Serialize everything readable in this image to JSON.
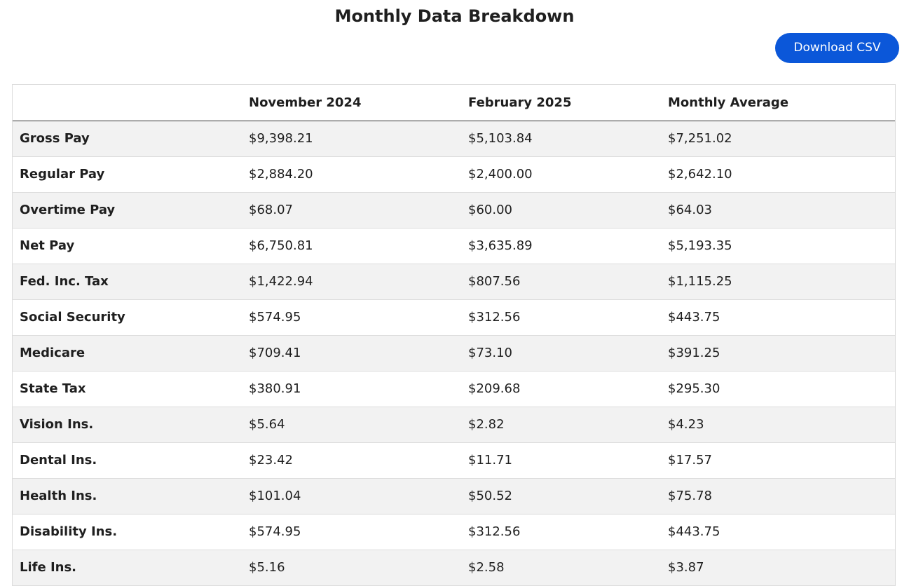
{
  "page": {
    "title": "Monthly Data Breakdown",
    "download_label": "Download CSV",
    "accent_color": "#0b57d9"
  },
  "table": {
    "headers": [
      "",
      "November 2024",
      "February 2025",
      "Monthly Average"
    ],
    "rows": [
      {
        "label": "Gross Pay",
        "nov_2024": "$9,398.21",
        "feb_2025": "$5,103.84",
        "avg": "$7,251.02"
      },
      {
        "label": "Regular Pay",
        "nov_2024": "$2,884.20",
        "feb_2025": "$2,400.00",
        "avg": "$2,642.10"
      },
      {
        "label": "Overtime Pay",
        "nov_2024": "$68.07",
        "feb_2025": "$60.00",
        "avg": "$64.03"
      },
      {
        "label": "Net Pay",
        "nov_2024": "$6,750.81",
        "feb_2025": "$3,635.89",
        "avg": "$5,193.35"
      },
      {
        "label": "Fed. Inc. Tax",
        "nov_2024": "$1,422.94",
        "feb_2025": "$807.56",
        "avg": "$1,115.25"
      },
      {
        "label": "Social Security",
        "nov_2024": "$574.95",
        "feb_2025": "$312.56",
        "avg": "$443.75"
      },
      {
        "label": "Medicare",
        "nov_2024": "$709.41",
        "feb_2025": "$73.10",
        "avg": "$391.25"
      },
      {
        "label": "State Tax",
        "nov_2024": "$380.91",
        "feb_2025": "$209.68",
        "avg": "$295.30"
      },
      {
        "label": "Vision Ins.",
        "nov_2024": "$5.64",
        "feb_2025": "$2.82",
        "avg": "$4.23"
      },
      {
        "label": "Dental Ins.",
        "nov_2024": "$23.42",
        "feb_2025": "$11.71",
        "avg": "$17.57"
      },
      {
        "label": "Health Ins.",
        "nov_2024": "$101.04",
        "feb_2025": "$50.52",
        "avg": "$75.78"
      },
      {
        "label": "Disability Ins.",
        "nov_2024": "$574.95",
        "feb_2025": "$312.56",
        "avg": "$443.75"
      },
      {
        "label": "Life Ins.",
        "nov_2024": "$5.16",
        "feb_2025": "$2.58",
        "avg": "$3.87"
      }
    ]
  }
}
